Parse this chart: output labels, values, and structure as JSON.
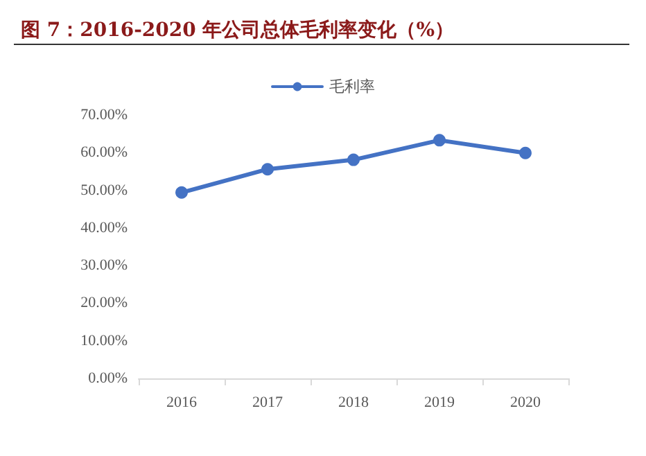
{
  "chart_data": {
    "type": "line",
    "title": "图 7：2016-2020 年公司总体毛利率变化（%）",
    "categories": [
      "2016",
      "2017",
      "2018",
      "2019",
      "2020"
    ],
    "series": [
      {
        "name": "毛利率",
        "color": "#4472c4",
        "values": [
          49.4,
          55.6,
          58.1,
          63.3,
          59.9
        ]
      }
    ],
    "ylim": [
      0,
      70
    ],
    "yticks": [
      {
        "value": 0,
        "label": "0.00%"
      },
      {
        "value": 10,
        "label": "10.00%"
      },
      {
        "value": 20,
        "label": "20.00%"
      },
      {
        "value": 30,
        "label": "30.00%"
      },
      {
        "value": 40,
        "label": "40.00%"
      },
      {
        "value": 50,
        "label": "50.00%"
      },
      {
        "value": 60,
        "label": "60.00%"
      },
      {
        "value": 70,
        "label": "70.00%"
      }
    ],
    "legend": "top",
    "marker": "circle",
    "grid": false
  }
}
